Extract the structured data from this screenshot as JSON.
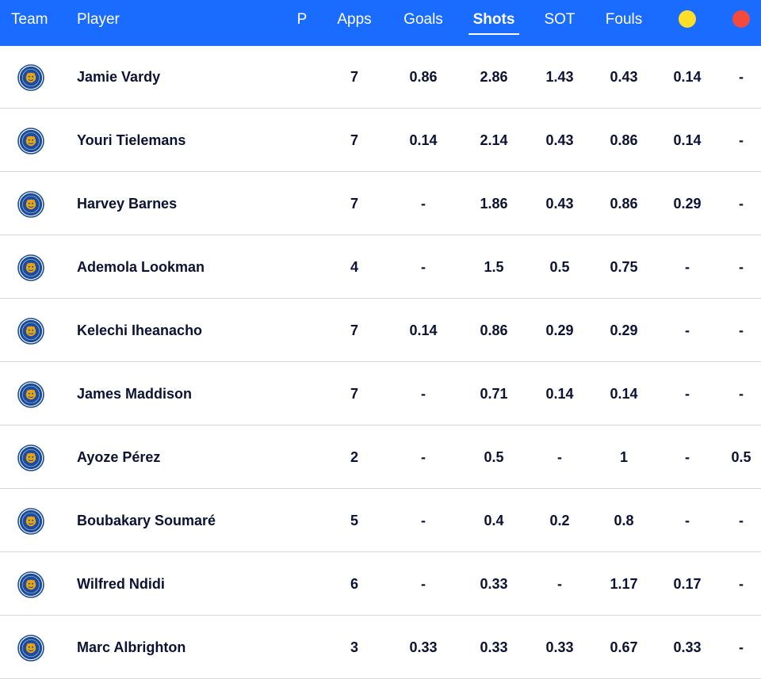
{
  "header": {
    "team": "Team",
    "player": "Player",
    "p": "P",
    "apps": "Apps",
    "goals": "Goals",
    "shots": "Shots",
    "sot": "SOT",
    "fouls": "Fouls",
    "yellow_color": "#ffde2a",
    "red_color": "#f4493d"
  },
  "colors": {
    "header_bg": "#1a6bff",
    "crest_blue": "#1a4b9c",
    "crest_gold": "#e8a317"
  },
  "crest_icon": "leicester-city-crest-icon",
  "rows": [
    {
      "player": "Jamie Vardy",
      "apps": "7",
      "goals": "0.86",
      "shots": "2.86",
      "sot": "1.43",
      "fouls": "0.43",
      "yellow": "0.14",
      "red": "-"
    },
    {
      "player": "Youri Tielemans",
      "apps": "7",
      "goals": "0.14",
      "shots": "2.14",
      "sot": "0.43",
      "fouls": "0.86",
      "yellow": "0.14",
      "red": "-"
    },
    {
      "player": "Harvey Barnes",
      "apps": "7",
      "goals": "-",
      "shots": "1.86",
      "sot": "0.43",
      "fouls": "0.86",
      "yellow": "0.29",
      "red": "-"
    },
    {
      "player": "Ademola Lookman",
      "apps": "4",
      "goals": "-",
      "shots": "1.5",
      "sot": "0.5",
      "fouls": "0.75",
      "yellow": "-",
      "red": "-"
    },
    {
      "player": "Kelechi Iheanacho",
      "apps": "7",
      "goals": "0.14",
      "shots": "0.86",
      "sot": "0.29",
      "fouls": "0.29",
      "yellow": "-",
      "red": "-"
    },
    {
      "player": "James Maddison",
      "apps": "7",
      "goals": "-",
      "shots": "0.71",
      "sot": "0.14",
      "fouls": "0.14",
      "yellow": "-",
      "red": "-"
    },
    {
      "player": "Ayoze Pérez",
      "apps": "2",
      "goals": "-",
      "shots": "0.5",
      "sot": "-",
      "fouls": "1",
      "yellow": "-",
      "red": "0.5"
    },
    {
      "player": "Boubakary Soumaré",
      "apps": "5",
      "goals": "-",
      "shots": "0.4",
      "sot": "0.2",
      "fouls": "0.8",
      "yellow": "-",
      "red": "-"
    },
    {
      "player": "Wilfred Ndidi",
      "apps": "6",
      "goals": "-",
      "shots": "0.33",
      "sot": "-",
      "fouls": "1.17",
      "yellow": "0.17",
      "red": "-"
    },
    {
      "player": "Marc Albrighton",
      "apps": "3",
      "goals": "0.33",
      "shots": "0.33",
      "sot": "0.33",
      "fouls": "0.67",
      "yellow": "0.33",
      "red": "-"
    }
  ]
}
